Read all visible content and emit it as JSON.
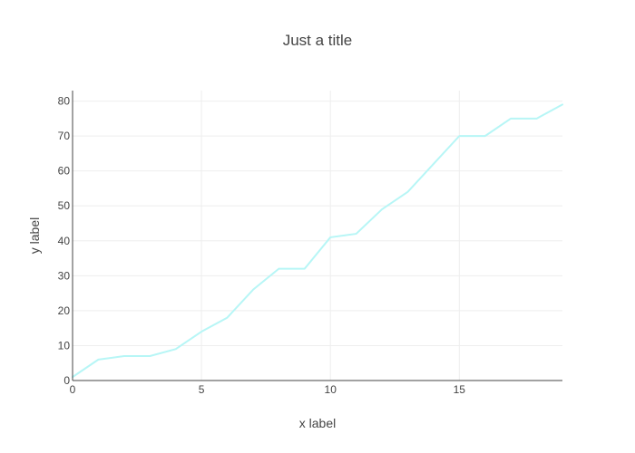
{
  "chart_data": {
    "type": "line",
    "title": "Just a title",
    "xlabel": "x label",
    "ylabel": "y label",
    "x": [
      0,
      1,
      2,
      3,
      4,
      5,
      6,
      7,
      8,
      9,
      10,
      11,
      12,
      13,
      14,
      15,
      16,
      17,
      18,
      19
    ],
    "series": [
      {
        "values": [
          1,
          6,
          7,
          7,
          9,
          14,
          18,
          26,
          32,
          32,
          41,
          42,
          49,
          54,
          62,
          70,
          70,
          75,
          75,
          79
        ],
        "color": "#b7f6f6"
      }
    ],
    "xlim": [
      0,
      19
    ],
    "ylim": [
      0,
      83
    ],
    "x_ticks": [
      0,
      5,
      10,
      15
    ],
    "y_ticks": [
      0,
      10,
      20,
      30,
      40,
      50,
      60,
      70,
      80
    ],
    "grid": true,
    "legend": "none"
  }
}
